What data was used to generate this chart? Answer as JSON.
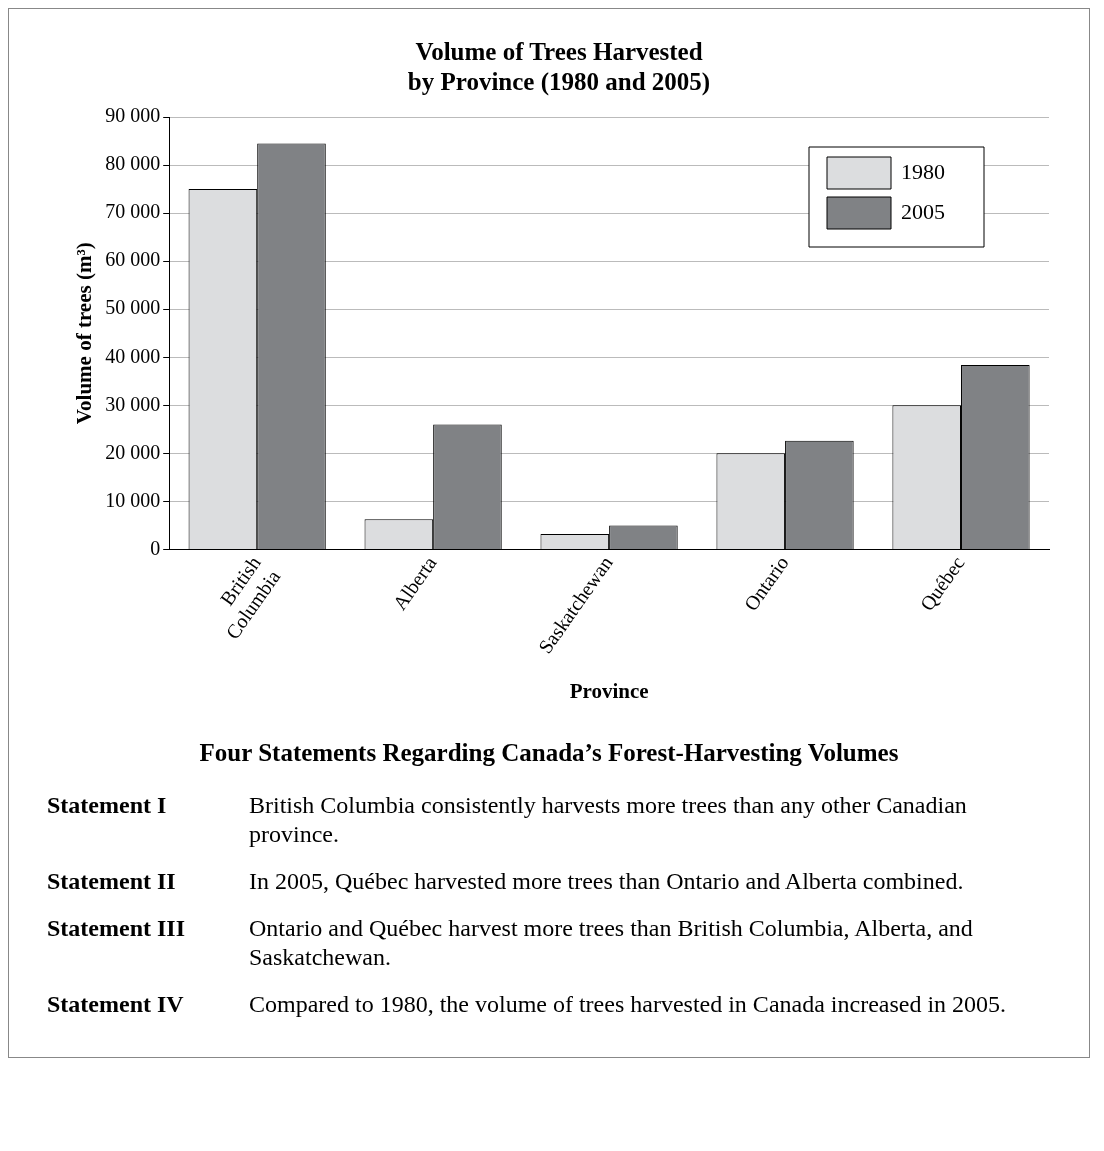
{
  "chart_data": {
    "type": "bar",
    "title": "Volume of Trees Harvested\nby Province (1980 and 2005)",
    "xlabel": "Province",
    "ylabel": "Volume of trees (m³)",
    "categories": [
      "British Columbia",
      "Alberta",
      "Saskatchewan",
      "Ontario",
      "Québec"
    ],
    "series": [
      {
        "name": "1980",
        "color": "#dcdddf",
        "values": [
          75000,
          6300,
          3200,
          20000,
          30000
        ]
      },
      {
        "name": "2005",
        "color": "#808285",
        "values": [
          84500,
          26000,
          5000,
          22600,
          38400
        ]
      }
    ],
    "ylim": [
      0,
      90000
    ],
    "yticks": [
      {
        "value": 0,
        "label": "0"
      },
      {
        "value": 10000,
        "label": "10 000"
      },
      {
        "value": 20000,
        "label": "20 000"
      },
      {
        "value": 30000,
        "label": "30 000"
      },
      {
        "value": 40000,
        "label": "40 000"
      },
      {
        "value": 50000,
        "label": "50 000"
      },
      {
        "value": 60000,
        "label": "60 000"
      },
      {
        "value": 70000,
        "label": "70 000"
      },
      {
        "value": 80000,
        "label": "80 000"
      },
      {
        "value": 90000,
        "label": "90 000"
      }
    ],
    "grid": "y",
    "legend": "top right",
    "annotations": [
      "Four Statements Regarding Canada’s Forest-Harvesting Volumes",
      "Statement I",
      "British Columbia consistently harvests more trees than any other Canadian province.",
      "Statement II",
      "In 2005, Québec harvested more trees than Ontario and Alberta combined.",
      "Statement III",
      "Ontario and Québec harvest more trees than British Columbia, Alberta, and Saskatchewan.",
      "Statement IV",
      "Compared to 1980, the volume of trees harvested in Canada increased in 2005."
    ]
  }
}
